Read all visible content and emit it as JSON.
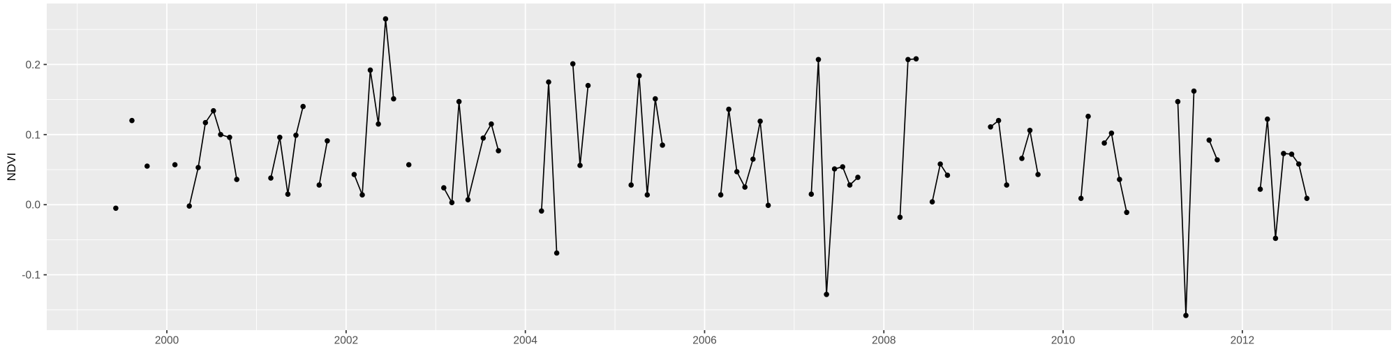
{
  "figure": {
    "y_axis_title": "NDVI"
  },
  "colors": {
    "figure_background": "#FFFFFF",
    "panel_background": "#EBEBEB",
    "gridline": "#FFFFFF",
    "axis_text": "#4D4D4D",
    "tick_mark": "#333333",
    "point_and_line": "#000000"
  },
  "chart_data": {
    "type": "line",
    "title": "",
    "xlabel": "",
    "ylabel": "NDVI",
    "legend": "none",
    "grid": "white major and minor gridlines on grey panel",
    "series_name": "NDVI",
    "xlim": [
      1998.66,
      2013.66
    ],
    "ylim": [
      -0.179,
      0.287
    ],
    "x_tick_labels": [
      "2000",
      "2002",
      "2004",
      "2006",
      "2008",
      "2010",
      "2012"
    ],
    "x_tick_values": [
      2000,
      2002,
      2004,
      2006,
      2008,
      2010,
      2012
    ],
    "x_minor_gridlines": [
      1999,
      2001,
      2003,
      2005,
      2007,
      2009,
      2011,
      2013
    ],
    "y_tick_labels": [
      "0.2",
      "0.1",
      "0.0",
      "-0.1"
    ],
    "y_tick_values": [
      0.2,
      0.1,
      0.0,
      -0.1
    ],
    "y_minor_gridlines": [
      0.25,
      0.15,
      0.05,
      -0.05,
      -0.15
    ],
    "segments": [
      [
        [
          1999.43,
          -0.005
        ]
      ],
      [
        [
          1999.61,
          0.12
        ]
      ],
      [
        [
          1999.78,
          0.055
        ]
      ],
      [
        [
          2000.09,
          0.057
        ]
      ],
      [
        [
          2000.25,
          -0.002
        ],
        [
          2000.35,
          0.053
        ],
        [
          2000.43,
          0.117
        ],
        [
          2000.52,
          0.134
        ],
        [
          2000.6,
          0.1
        ],
        [
          2000.7,
          0.096
        ],
        [
          2000.78,
          0.036
        ]
      ],
      [
        [
          2001.16,
          0.038
        ],
        [
          2001.26,
          0.096
        ],
        [
          2001.35,
          0.015
        ],
        [
          2001.44,
          0.099
        ],
        [
          2001.52,
          0.14
        ]
      ],
      [
        [
          2001.7,
          0.028
        ],
        [
          2001.79,
          0.091
        ]
      ],
      [
        [
          2002.09,
          0.043
        ],
        [
          2002.18,
          0.014
        ],
        [
          2002.27,
          0.192
        ],
        [
          2002.36,
          0.115
        ],
        [
          2002.44,
          0.265
        ],
        [
          2002.53,
          0.151
        ]
      ],
      [
        [
          2002.7,
          0.057
        ]
      ],
      [
        [
          2003.09,
          0.024
        ],
        [
          2003.18,
          0.003
        ],
        [
          2003.26,
          0.147
        ],
        [
          2003.36,
          0.007
        ],
        [
          2003.53,
          0.095
        ],
        [
          2003.62,
          0.115
        ],
        [
          2003.7,
          0.077
        ]
      ],
      [
        [
          2004.18,
          -0.009
        ],
        [
          2004.26,
          0.175
        ],
        [
          2004.35,
          -0.069
        ]
      ],
      [
        [
          2004.53,
          0.201
        ],
        [
          2004.61,
          0.056
        ],
        [
          2004.7,
          0.17
        ]
      ],
      [
        [
          2005.18,
          0.028
        ],
        [
          2005.27,
          0.184
        ],
        [
          2005.36,
          0.014
        ],
        [
          2005.45,
          0.151
        ],
        [
          2005.53,
          0.085
        ]
      ],
      [
        [
          2006.18,
          0.014
        ],
        [
          2006.27,
          0.136
        ],
        [
          2006.36,
          0.047
        ],
        [
          2006.45,
          0.025
        ],
        [
          2006.54,
          0.065
        ],
        [
          2006.62,
          0.119
        ],
        [
          2006.71,
          -0.001
        ]
      ],
      [
        [
          2007.19,
          0.015
        ],
        [
          2007.27,
          0.207
        ],
        [
          2007.36,
          -0.128
        ],
        [
          2007.45,
          0.051
        ],
        [
          2007.54,
          0.054
        ],
        [
          2007.62,
          0.028
        ],
        [
          2007.71,
          0.039
        ]
      ],
      [
        [
          2008.18,
          -0.018
        ],
        [
          2008.27,
          0.207
        ],
        [
          2008.36,
          0.208
        ]
      ],
      [
        [
          2008.54,
          0.004
        ],
        [
          2008.63,
          0.058
        ],
        [
          2008.71,
          0.042
        ]
      ],
      [
        [
          2009.19,
          0.111
        ],
        [
          2009.28,
          0.12
        ],
        [
          2009.37,
          0.028
        ]
      ],
      [
        [
          2009.54,
          0.066
        ],
        [
          2009.63,
          0.106
        ],
        [
          2009.72,
          0.043
        ]
      ],
      [
        [
          2010.2,
          0.009
        ],
        [
          2010.28,
          0.126
        ]
      ],
      [
        [
          2010.46,
          0.088
        ],
        [
          2010.54,
          0.102
        ],
        [
          2010.63,
          0.036
        ],
        [
          2010.71,
          -0.011
        ]
      ],
      [
        [
          2011.28,
          0.147
        ],
        [
          2011.37,
          -0.158
        ],
        [
          2011.46,
          0.162
        ]
      ],
      [
        [
          2011.63,
          0.092
        ],
        [
          2011.72,
          0.064
        ]
      ],
      [
        [
          2012.2,
          0.022
        ],
        [
          2012.28,
          0.122
        ],
        [
          2012.37,
          -0.048
        ],
        [
          2012.46,
          0.073
        ],
        [
          2012.55,
          0.072
        ],
        [
          2012.63,
          0.058
        ],
        [
          2012.72,
          0.009
        ]
      ]
    ]
  }
}
